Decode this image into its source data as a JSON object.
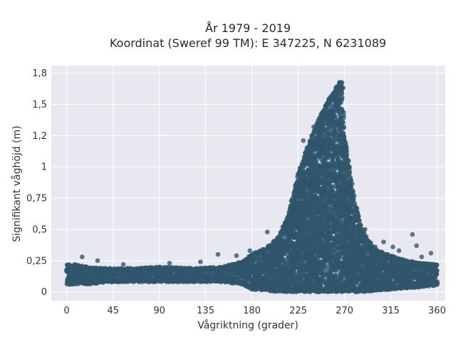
{
  "chart_data": {
    "type": "scatter",
    "title": "År 1979 - 2019",
    "subtitle": "Koordinat (Sweref 99 TM): E 347225, N 6231089",
    "xlabel": "Vågriktning (grader)",
    "ylabel": "Signifikant våghöjd (m)",
    "xlim": [
      -15,
      368
    ],
    "ylim": [
      -0.07,
      1.81
    ],
    "x_ticks": [
      0,
      45,
      90,
      135,
      180,
      225,
      270,
      315,
      360
    ],
    "x_tick_labels": [
      "0",
      "45",
      "90",
      "135",
      "180",
      "225",
      "270",
      "315",
      "360"
    ],
    "y_ticks": [
      0,
      0.25,
      0.5,
      0.75,
      1,
      1.25,
      1.5,
      1.75
    ],
    "y_tick_labels": [
      "0",
      "0,25",
      "0,5",
      "0,75",
      "1",
      "1,2",
      "1,5",
      "1,8"
    ],
    "grid": true,
    "legend": "none",
    "marker_color": "#2f566c",
    "background_color": "#e8e8f0",
    "series": [
      {
        "envelope": {
          "x": [
            0,
            10,
            20,
            30,
            45,
            60,
            90,
            120,
            150,
            170,
            180,
            195,
            205,
            215,
            225,
            235,
            245,
            250,
            255,
            260,
            265,
            268,
            270,
            275,
            280,
            285,
            290,
            300,
            315,
            330,
            345,
            360
          ],
          "y_upper": [
            0.22,
            0.22,
            0.2,
            0.19,
            0.19,
            0.19,
            0.2,
            0.19,
            0.2,
            0.24,
            0.3,
            0.36,
            0.43,
            0.6,
            0.95,
            1.18,
            1.38,
            1.46,
            1.55,
            1.6,
            1.68,
            1.68,
            1.25,
            0.98,
            0.72,
            0.56,
            0.45,
            0.34,
            0.29,
            0.25,
            0.23,
            0.22
          ],
          "y_lower": [
            0.06,
            0.06,
            0.06,
            0.07,
            0.08,
            0.08,
            0.08,
            0.08,
            0.08,
            0.06,
            0.02,
            0.01,
            0.0,
            0.0,
            0.0,
            0.0,
            0.0,
            0.0,
            0.0,
            0.0,
            0.0,
            0.0,
            0.0,
            0.0,
            0.0,
            0.0,
            0.0,
            0.01,
            0.02,
            0.03,
            0.04,
            0.05
          ]
        },
        "outliers": [
          {
            "x": 15,
            "y": 0.28
          },
          {
            "x": 30,
            "y": 0.25
          },
          {
            "x": 55,
            "y": 0.22
          },
          {
            "x": 100,
            "y": 0.23
          },
          {
            "x": 130,
            "y": 0.24
          },
          {
            "x": 147,
            "y": 0.3
          },
          {
            "x": 165,
            "y": 0.29
          },
          {
            "x": 178,
            "y": 0.33
          },
          {
            "x": 195,
            "y": 0.48
          },
          {
            "x": 210,
            "y": 0.52
          },
          {
            "x": 220,
            "y": 0.62
          },
          {
            "x": 230,
            "y": 1.21
          },
          {
            "x": 240,
            "y": 1.32
          },
          {
            "x": 252,
            "y": 1.48
          },
          {
            "x": 290,
            "y": 0.5
          },
          {
            "x": 300,
            "y": 0.36
          },
          {
            "x": 308,
            "y": 0.4
          },
          {
            "x": 317,
            "y": 0.36
          },
          {
            "x": 323,
            "y": 0.33
          },
          {
            "x": 336,
            "y": 0.46
          },
          {
            "x": 340,
            "y": 0.37
          },
          {
            "x": 354,
            "y": 0.31
          },
          {
            "x": 345,
            "y": 0.28
          }
        ]
      }
    ]
  }
}
